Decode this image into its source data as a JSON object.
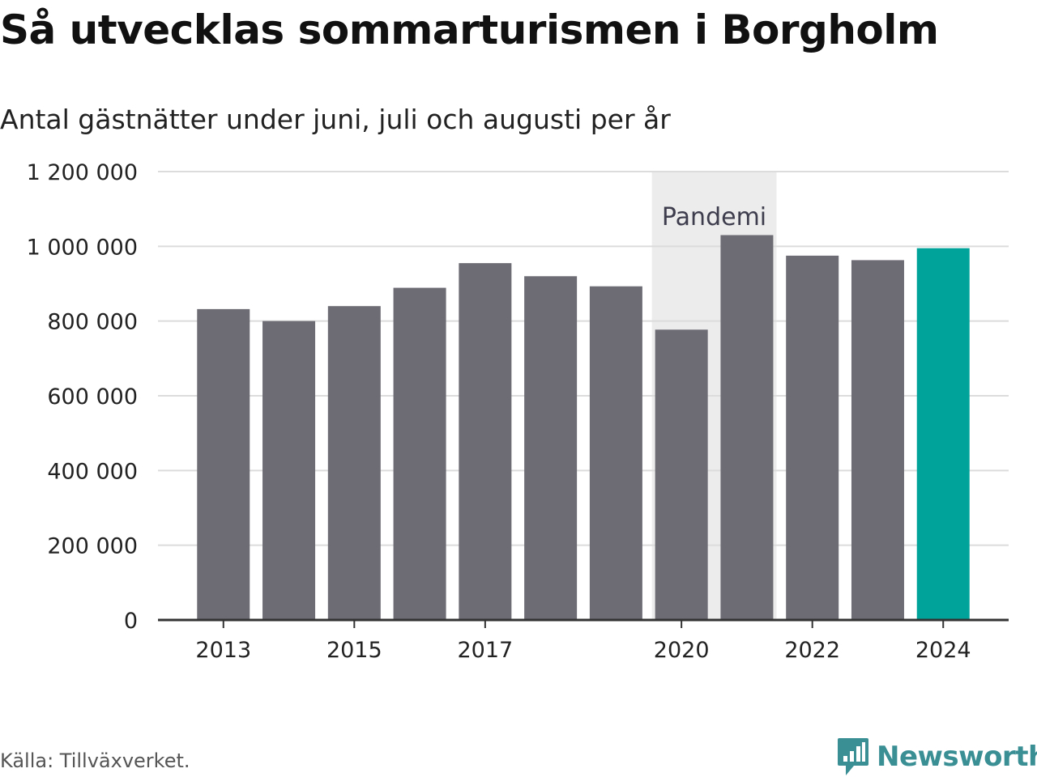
{
  "chart_data": {
    "type": "bar",
    "title": "Så utvecklas sommarturismen i Borgholm",
    "subtitle": "Antal gästnätter under juni, juli och augusti per år",
    "categories": [
      "2013",
      "2014",
      "2015",
      "2016",
      "2017",
      "2018",
      "2019",
      "2020",
      "2021",
      "2022",
      "2023",
      "2024"
    ],
    "values": [
      832000,
      800000,
      840000,
      889000,
      955000,
      920000,
      893000,
      777000,
      1030000,
      975000,
      963000,
      995000
    ],
    "x_tick_labels": [
      "2013",
      "2015",
      "2017",
      "2020",
      "2022",
      "2024"
    ],
    "y_tick_labels": [
      "0",
      "200 000",
      "400 000",
      "600 000",
      "800 000",
      "1 000 000",
      "1 200 000"
    ],
    "y_ticks": [
      0,
      200000,
      400000,
      600000,
      800000,
      1000000,
      1200000
    ],
    "ylim": [
      0,
      1200000
    ],
    "grid": true,
    "annotation": {
      "label": "Pandemi",
      "from": "2020",
      "to": "2021"
    },
    "colors": {
      "bar": "#6d6c74",
      "highlight": "#00a39a",
      "highlight_category": "2024",
      "band": "#ececec",
      "grid": "#dcdcdc",
      "axis": "#333333"
    },
    "xlabel": "",
    "ylabel": ""
  },
  "source": "Källa: Tillväxverket.",
  "brand": {
    "name": "Newsworthy",
    "icon": "bar-chart-speech-bubble-icon",
    "color": "#3a8f95"
  }
}
